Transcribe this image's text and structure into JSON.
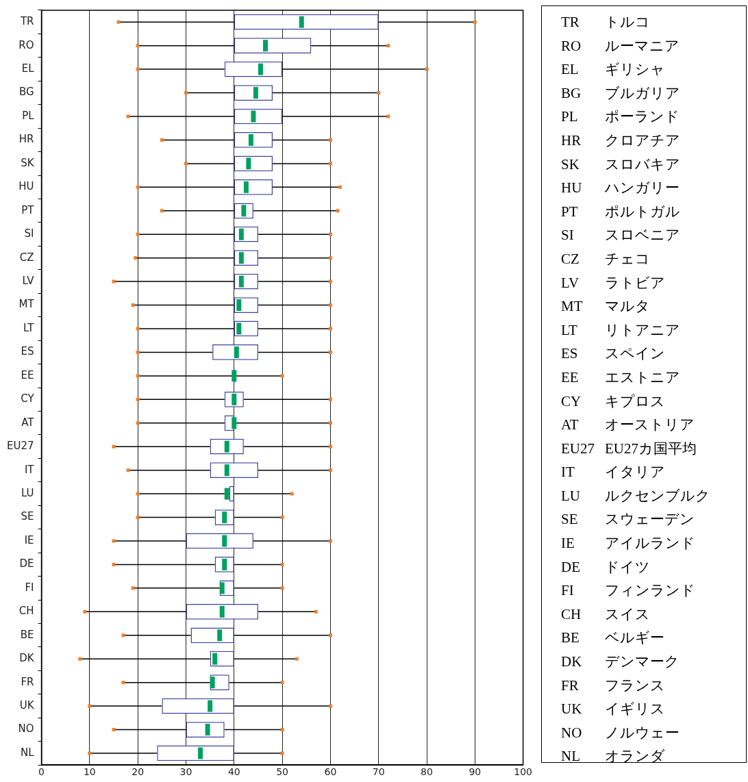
{
  "chart_data": {
    "type": "box",
    "orientation": "horizontal",
    "color": "#3f4499",
    "categories": [
      "TR",
      "RO",
      "EL",
      "BG",
      "PL",
      "HR",
      "SK",
      "HU",
      "PT",
      "SI",
      "CZ",
      "LV",
      "MT",
      "LT",
      "ES",
      "EE",
      "CY",
      "AT",
      "EU27",
      "IT",
      "LU",
      "SE",
      "IE",
      "DE",
      "FI",
      "CH",
      "BE",
      "DK",
      "FR",
      "UK",
      "NO",
      "NL"
    ],
    "boxes": [
      {
        "low": 16,
        "q1": 40,
        "median": 54,
        "q3": 70,
        "high": 90
      },
      {
        "low": 20,
        "q1": 40,
        "median": 46.5,
        "q3": 56,
        "high": 72
      },
      {
        "low": 20,
        "q1": 38,
        "median": 45.5,
        "q3": 50,
        "high": 80
      },
      {
        "low": 30,
        "q1": 40,
        "median": 44.5,
        "q3": 48,
        "high": 70
      },
      {
        "low": 18,
        "q1": 40,
        "median": 44,
        "q3": 50,
        "high": 72
      },
      {
        "low": 25,
        "q1": 40,
        "median": 43.5,
        "q3": 48,
        "high": 60
      },
      {
        "low": 30,
        "q1": 40,
        "median": 43,
        "q3": 48,
        "high": 60
      },
      {
        "low": 20,
        "q1": 40,
        "median": 42.5,
        "q3": 48,
        "high": 62
      },
      {
        "low": 25,
        "q1": 40,
        "median": 42,
        "q3": 44,
        "high": 61.5
      },
      {
        "low": 20,
        "q1": 40,
        "median": 41.5,
        "q3": 45,
        "high": 60
      },
      {
        "low": 19.5,
        "q1": 40,
        "median": 41.5,
        "q3": 45,
        "high": 60
      },
      {
        "low": 15,
        "q1": 40,
        "median": 41.5,
        "q3": 45,
        "high": 60
      },
      {
        "low": 19,
        "q1": 40,
        "median": 41,
        "q3": 45,
        "high": 60
      },
      {
        "low": 20,
        "q1": 40,
        "median": 41,
        "q3": 45,
        "high": 60
      },
      {
        "low": 20,
        "q1": 35.5,
        "median": 40.5,
        "q3": 45,
        "high": 60
      },
      {
        "low": 20,
        "q1": 40,
        "median": 40,
        "q3": 40,
        "high": 50
      },
      {
        "low": 20,
        "q1": 38,
        "median": 40,
        "q3": 42,
        "high": 60
      },
      {
        "low": 20,
        "q1": 38,
        "median": 40,
        "q3": 40,
        "high": 60
      },
      {
        "low": 15,
        "q1": 35,
        "median": 38.5,
        "q3": 42,
        "high": 60
      },
      {
        "low": 18,
        "q1": 35,
        "median": 38.5,
        "q3": 45,
        "high": 60
      },
      {
        "low": 20,
        "q1": 39,
        "median": 38.5,
        "q3": 40,
        "high": 52
      },
      {
        "low": 20,
        "q1": 36,
        "median": 38,
        "q3": 40,
        "high": 50
      },
      {
        "low": 15,
        "q1": 30,
        "median": 38,
        "q3": 44,
        "high": 60
      },
      {
        "low": 15,
        "q1": 36,
        "median": 38,
        "q3": 40,
        "high": 50
      },
      {
        "low": 19,
        "q1": 37,
        "median": 37.5,
        "q3": 40,
        "high": 50
      },
      {
        "low": 9,
        "q1": 30,
        "median": 37.5,
        "q3": 45,
        "high": 57
      },
      {
        "low": 17,
        "q1": 31,
        "median": 37,
        "q3": 40,
        "high": 60
      },
      {
        "low": 8,
        "q1": 35,
        "median": 36,
        "q3": 40,
        "high": 53
      },
      {
        "low": 17,
        "q1": 35,
        "median": 35.5,
        "q3": 39,
        "high": 50
      },
      {
        "low": 10,
        "q1": 25,
        "median": 35,
        "q3": 40,
        "high": 60
      },
      {
        "low": 15,
        "q1": 30,
        "median": 34.5,
        "q3": 38,
        "high": 50
      },
      {
        "low": 10,
        "q1": 24,
        "median": 33,
        "q3": 40,
        "high": 50
      }
    ],
    "xlim": [
      0,
      100
    ],
    "xticks": [
      0,
      10,
      20,
      30,
      40,
      50,
      60,
      70,
      80,
      90,
      100
    ],
    "grid": "x",
    "annotations": [
      "TR トルコ",
      "RO ルーマニア",
      "EL ギリシャ",
      "BG ブルガリア",
      "PL ポーランド",
      "HR クロアチア",
      "SK スロバキア",
      "HU ハンガリー",
      "PT ポルトガル",
      "SI スロベニア",
      "CZ チェコ",
      "LV ラトビア",
      "MT マルタ",
      "LT リトアニア",
      "ES スペイン",
      "EE エストニア",
      "CY キプロス",
      "AT オーストリア",
      "EU27 EU27カ国平均",
      "IT イタリア",
      "LU ルクセンブルク",
      "SE スウェーデン",
      "IE アイルランド",
      "DE ドイツ",
      "FI フィンランド",
      "CH スイス",
      "BE ベルギー",
      "DK デンマーク",
      "FR フランス",
      "UK イギリス",
      "NO ノルウェー",
      "NL オランダ"
    ]
  }
}
